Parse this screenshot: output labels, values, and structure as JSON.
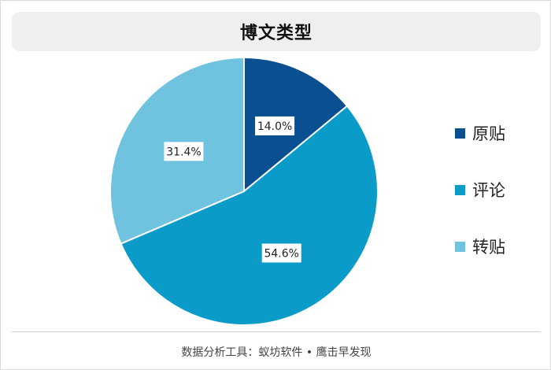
{
  "colors": {
    "slice_1": "#0a4f8f",
    "slice_2": "#0a9bc8",
    "slice_3": "#6fc3de"
  },
  "chart_data": {
    "type": "pie",
    "title": "博文类型",
    "categories": [
      "原贴",
      "评论",
      "转贴"
    ],
    "values": [
      14.0,
      54.6,
      31.4
    ],
    "value_labels": [
      "14.0%",
      "54.6%",
      "31.4%"
    ],
    "legend": "right",
    "start_angle": "12 o'clock, clockwise"
  },
  "footer": {
    "text": "数据分析工具：蚁坊软件 • 鹰击早发现"
  }
}
